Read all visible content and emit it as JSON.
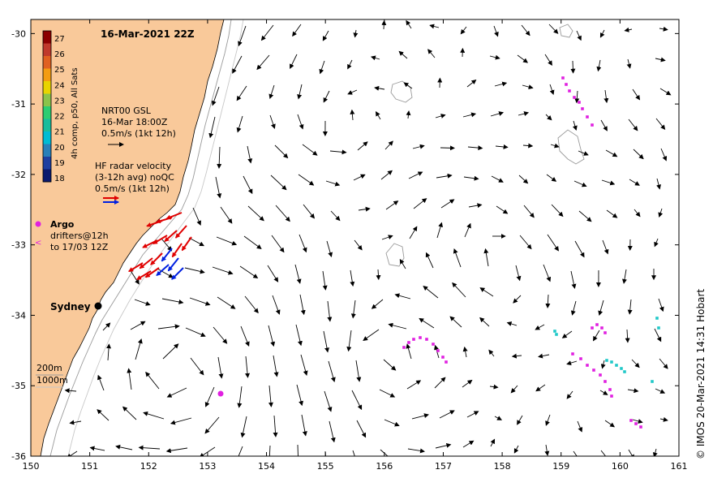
{
  "map": {
    "title": "16-Mar-2021 22Z",
    "credit": "© IMOS 20-Mar-2021 14:31 Hobart",
    "x_ticks": [
      "150",
      "151",
      "152",
      "153",
      "154",
      "155",
      "156",
      "157",
      "158",
      "159",
      "160",
      "161"
    ],
    "y_ticks": [
      "-30",
      "-31",
      "-32",
      "-33",
      "-34",
      "-35",
      "-36"
    ],
    "lon_range": [
      150,
      161
    ],
    "lat_range": [
      -36,
      -29.8
    ],
    "city": {
      "name": "Sydney",
      "lon": 151.2,
      "lat": -33.87
    },
    "colorbar": {
      "label": "4h comp, p50, All Sats",
      "ticks": [
        "27",
        "26",
        "25",
        "24",
        "23",
        "22",
        "21",
        "20",
        "19",
        "18"
      ],
      "colors": [
        "#8b0000",
        "#c0392b",
        "#e06020",
        "#f39c12",
        "#e8d400",
        "#8bc34a",
        "#2ecc71",
        "#1abc9c",
        "#00bcd4",
        "#2980b9",
        "#1f3fa0",
        "#0b1a6e"
      ]
    },
    "legend": {
      "gsl_title": "NRT00 GSL",
      "gsl_time": "16-Mar 18:00Z",
      "gsl_scale": "0.5m/s (1kt 12h)",
      "hf_title": "HF radar velocity",
      "hf_avg": "(3-12h avg) noQC",
      "hf_scale": "0.5m/s (1kt 12h)",
      "argo_label": "Argo",
      "drifters_label": "drifters@12h",
      "drifters_to": "to 17/03 12Z"
    },
    "depth_labels": [
      "200m",
      "1000m"
    ],
    "colors": {
      "land": "#f9c99a",
      "argo": "#e020e0",
      "drifter_cyan": "#20c8c8",
      "hf_red": "#e00000",
      "hf_blue": "#0020e0"
    }
  }
}
